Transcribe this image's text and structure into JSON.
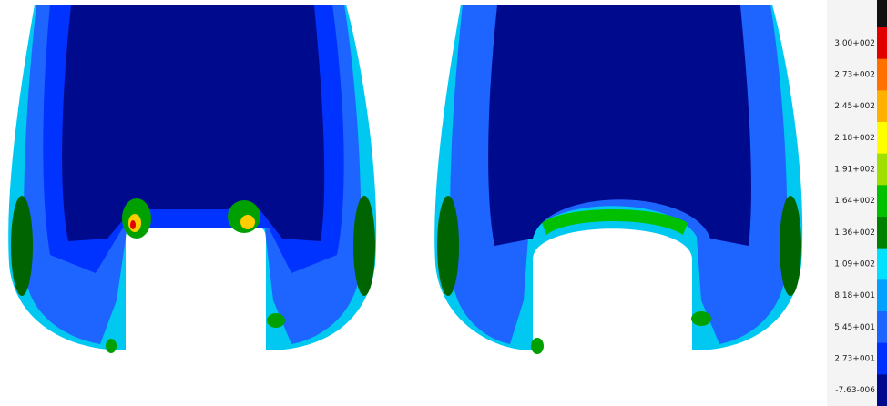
{
  "colorbar": {
    "labels": [
      "3.00+002",
      "2.73+002",
      "2.45+002",
      "2.18+002",
      "1.91+002",
      "1.64+002",
      "1.36+002",
      "1.09+002",
      "8.18+001",
      "5.45+001",
      "2.73+001",
      "-7.63-006"
    ],
    "colors": [
      "#e00000",
      "#ff7000",
      "#ffb000",
      "#ffff00",
      "#a0e000",
      "#00c000",
      "#008000",
      "#00e0ff",
      "#00a0ff",
      "#1e64ff",
      "#0030ff",
      "#000a8c"
    ]
  }
}
